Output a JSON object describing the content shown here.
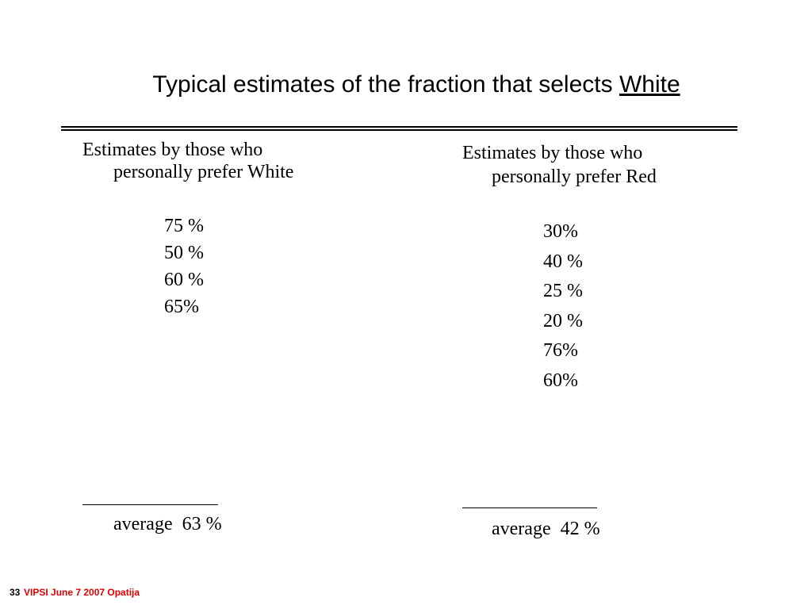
{
  "title": {
    "text": "Typical estimates of the fraction that selects ",
    "emphasis": "White"
  },
  "columns": [
    {
      "heading": [
        "Estimates by those who",
        "personally prefer White"
      ],
      "values": [
        "75 %",
        "50 %",
        "60 %",
        "65%"
      ],
      "average": "average  63 %"
    },
    {
      "heading": [
        "Estimates by those who",
        "personally prefer Red"
      ],
      "values": [
        "30%",
        "40 %",
        "25 %",
        "20 %",
        "76%",
        "60%"
      ],
      "average": "average  42 %"
    }
  ],
  "footer": {
    "number": "33",
    "text": "VIPSI June 7 2007 Opatija"
  }
}
